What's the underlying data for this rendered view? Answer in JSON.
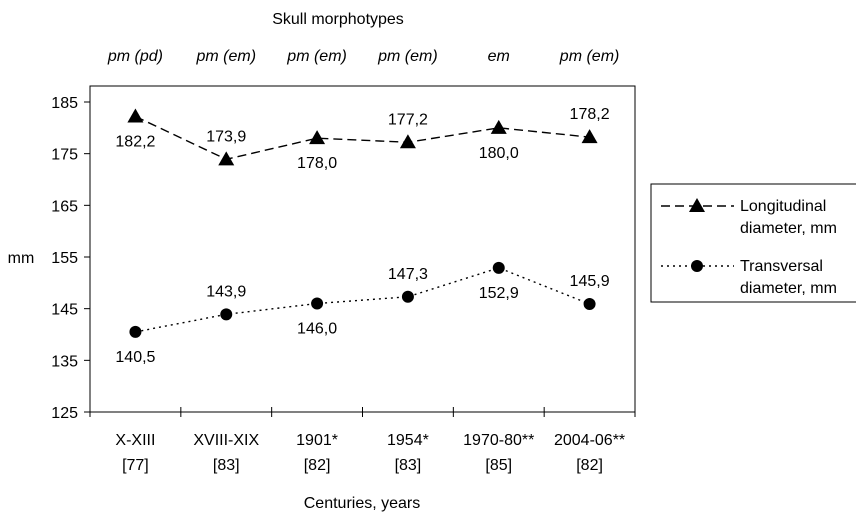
{
  "chart_data": {
    "type": "line",
    "title": "Skull morphotypes",
    "morphotypes": [
      "pm (pd)",
      "pm (em)",
      "pm (em)",
      "pm (em)",
      "em",
      "pm (em)"
    ],
    "categories": [
      {
        "line1": "X-XIII",
        "line2": "[77]"
      },
      {
        "line1": "XVIII-XIX",
        "line2": "[83]"
      },
      {
        "line1": "1901*",
        "line2": "[82]"
      },
      {
        "line1": "1954*",
        "line2": "[83]"
      },
      {
        "line1": "1970-80**",
        "line2": "[85]"
      },
      {
        "line1": "2004-06**",
        "line2": "[82]"
      }
    ],
    "xlabel": "Centuries, years",
    "ylabel": "mm",
    "ylim": [
      125,
      185
    ],
    "yticks": [
      125,
      135,
      145,
      155,
      165,
      175,
      185
    ],
    "series": [
      {
        "name": "Longitudinal diameter, mm",
        "name_line1": "Longitudinal",
        "name_line2": "diameter, mm",
        "marker": "triangle",
        "dash": "dashed",
        "values": [
          182.2,
          173.9,
          178.0,
          177.2,
          180.0,
          178.2
        ],
        "labels": [
          "182,2",
          "173,9",
          "178,0",
          "177,2",
          "180,0",
          "178,2"
        ],
        "label_pos": [
          "below",
          "above",
          "below",
          "above",
          "below",
          "above"
        ]
      },
      {
        "name": "Transversal diameter, mm",
        "name_line1": "Transversal",
        "name_line2": "diameter, mm",
        "marker": "circle",
        "dash": "dotted",
        "values": [
          140.5,
          143.9,
          146.0,
          147.3,
          152.9,
          145.9
        ],
        "labels": [
          "140,5",
          "143,9",
          "146,0",
          "147,3",
          "152,9",
          "145,9"
        ],
        "label_pos": [
          "below",
          "above",
          "below",
          "above",
          "below",
          "above"
        ]
      }
    ],
    "legend": "right",
    "grid": false,
    "colors": {
      "line": "#000000",
      "marker": "#000000",
      "background": "#ffffff"
    }
  }
}
